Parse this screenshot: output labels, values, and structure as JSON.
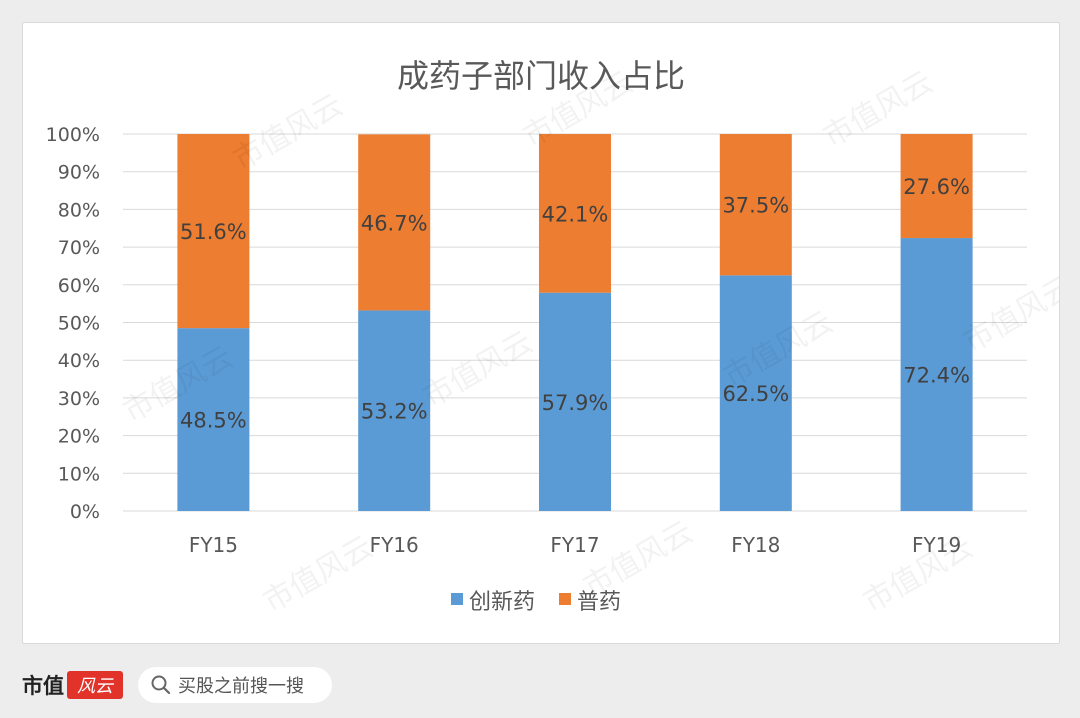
{
  "chart_data": {
    "type": "bar",
    "stacked": true,
    "percent_stacked": true,
    "title": "成药子部门收入占比",
    "categories": [
      "FY15",
      "FY16",
      "FY17",
      "FY18",
      "FY19"
    ],
    "series": [
      {
        "name": "创新药",
        "color": "#5b9bd5",
        "values": [
          48.5,
          53.2,
          57.9,
          62.5,
          72.4
        ],
        "labels": [
          "48.5%",
          "53.2%",
          "57.9%",
          "62.5%",
          "72.4%"
        ]
      },
      {
        "name": "普药",
        "color": "#ed7d31",
        "values": [
          51.6,
          46.7,
          42.1,
          37.5,
          27.6
        ],
        "labels": [
          "51.6%",
          "46.7%",
          "42.1%",
          "37.5%",
          "27.6%"
        ]
      }
    ],
    "yticks": [
      "0%",
      "10%",
      "20%",
      "30%",
      "40%",
      "50%",
      "60%",
      "70%",
      "80%",
      "90%",
      "100%"
    ],
    "ylim": [
      0,
      100
    ],
    "grid": true,
    "legend": "bottom"
  },
  "footer": {
    "brand": "市值",
    "logo_text": "风云",
    "search_icon": "search-icon",
    "search_text": "买股之前搜一搜"
  },
  "watermark": "市值风云"
}
